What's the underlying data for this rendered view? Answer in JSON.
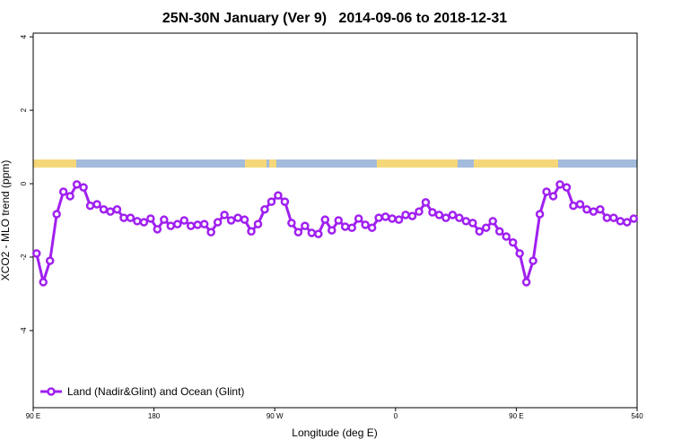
{
  "chart_data": {
    "type": "line",
    "title": "25N-30N January (Ver 9)   2014-09-06 to 2018-12-31",
    "x_label": "Longitude (deg E)",
    "y_label": "XCO2 - MLO trend (ppm)",
    "x": [
      92.5,
      97.5,
      102.5,
      107.5,
      112.5,
      117.5,
      122.5,
      127.5,
      132.5,
      137.5,
      142.5,
      147.5,
      152.5,
      157.5,
      162.5,
      167.5,
      172.5,
      177.5,
      182.5,
      187.5,
      192.5,
      197.5,
      202.5,
      207.5,
      212.5,
      217.5,
      222.5,
      227.5,
      232.5,
      237.5,
      242.5,
      247.5,
      252.5,
      257.5,
      262.5,
      267.5,
      272.5,
      277.5,
      282.5,
      287.5,
      292.5,
      297.5,
      302.5,
      307.5,
      312.5,
      317.5,
      322.5,
      327.5,
      332.5,
      337.5,
      342.5,
      347.5,
      352.5,
      357.5,
      362.5,
      367.5,
      372.5,
      377.5,
      382.5,
      387.5,
      392.5,
      397.5,
      402.5,
      407.5,
      412.5,
      417.5,
      422.5,
      427.5,
      432.5,
      437.5,
      442.5,
      447.5,
      452.5,
      457.5,
      462.5,
      467.5,
      472.5,
      477.5,
      482.5,
      487.5,
      492.5,
      497.5,
      502.5,
      507.5,
      512.5,
      517.5,
      522.5,
      527.5,
      532.5,
      537.5
    ],
    "series": [
      {
        "name": "Land (Nadir&Glint) and Ocean (Glint)",
        "color": "#a020f0",
        "values": [
          -1.9,
          -2.68,
          -2.1,
          -0.83,
          -0.22,
          -0.34,
          -0.02,
          -0.1,
          -0.6,
          -0.56,
          -0.7,
          -0.76,
          -0.7,
          -0.93,
          -0.93,
          -1.02,
          -1.05,
          -0.95,
          -1.24,
          -0.98,
          -1.15,
          -1.1,
          -1.0,
          -1.15,
          -1.12,
          -1.1,
          -1.32,
          -1.05,
          -0.85,
          -1.0,
          -0.93,
          -0.98,
          -1.3,
          -1.1,
          -0.7,
          -0.49,
          -0.32,
          -0.49,
          -1.07,
          -1.32,
          -1.15,
          -1.34,
          -1.37,
          -0.98,
          -1.27,
          -1.0,
          -1.17,
          -1.2,
          -0.95,
          -1.12,
          -1.2,
          -0.93,
          -0.9,
          -0.95,
          -0.98,
          -0.85,
          -0.88,
          -0.76,
          -0.51,
          -0.78,
          -0.85,
          -0.93,
          -0.85,
          -0.93,
          -1.02,
          -1.07,
          -1.3,
          -1.2,
          -1.02,
          -1.3,
          -1.44,
          -1.6,
          -1.9,
          -2.68,
          -2.1,
          -0.83,
          -0.22,
          -0.34,
          -0.02,
          -0.1,
          -0.6,
          -0.56,
          -0.7,
          -0.76,
          -0.7,
          -0.93,
          -0.93,
          -1.02,
          -1.05,
          -0.95
        ]
      }
    ],
    "xlim": [
      90,
      540
    ],
    "xticks": [
      {
        "value": 90,
        "label": "90 E"
      },
      180,
      {
        "value": 270,
        "label": "90 W"
      },
      {
        "value": 360,
        "label": "0"
      },
      {
        "value": 450,
        "label": "90 E"
      },
      540
    ],
    "ylim": [
      -6.1,
      4.1
    ],
    "yticks": [
      -4,
      -2,
      0,
      2,
      4
    ],
    "legend": "bottom-left"
  }
}
